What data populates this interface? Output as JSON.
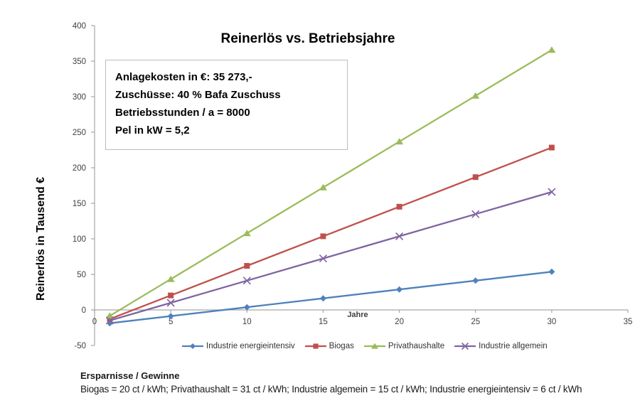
{
  "chart_data": {
    "type": "line",
    "title": "Reinerlös vs. Betriebsjahre",
    "xlabel": "Jahre",
    "ylabel": "Reinerlös in Tausend €",
    "x": [
      1,
      5,
      10,
      15,
      20,
      25,
      30
    ],
    "series": [
      {
        "name": "Industrie energieintensiv",
        "color": "#4F81BD",
        "marker": "diamond",
        "values": [
          -18.7,
          -8.7,
          3.8,
          16.3,
          28.8,
          41.2,
          53.7
        ]
      },
      {
        "name": "Biogas",
        "color": "#C0504D",
        "marker": "square",
        "values": [
          -12.8,
          20.4,
          62.0,
          103.6,
          145.2,
          186.8,
          228.4
        ]
      },
      {
        "name": "Privathaushalte",
        "color": "#9BBB59",
        "marker": "triangle",
        "values": [
          -8.3,
          43.3,
          107.8,
          172.3,
          236.8,
          301.2,
          365.7
        ]
      },
      {
        "name": "Industrie allgemein",
        "color": "#8064A2",
        "marker": "x",
        "values": [
          -14.9,
          10.0,
          41.2,
          72.4,
          103.6,
          134.8,
          166.0
        ]
      }
    ],
    "xlim": [
      0,
      35
    ],
    "ylim": [
      -50,
      400
    ],
    "x_ticks": [
      0,
      5,
      10,
      15,
      20,
      25,
      30,
      35
    ],
    "y_ticks": [
      400,
      350,
      300,
      250,
      200,
      150,
      100,
      50,
      0,
      -50
    ],
    "grid": false,
    "legend_position": "bottom",
    "axis_color": "#a6a6a6",
    "tick_label_color": "#404040",
    "annotation_lines": [
      "Anlagekosten in €: 35 273,-",
      "Zuschüsse: 40 % Bafa Zuschuss",
      "Betriebsstunden / a = 8000",
      "Pel in kW = 5,2"
    ]
  },
  "footnote": {
    "heading": "Ersparnisse / Gewinne",
    "text": "Biogas = 20 ct / kWh; Privathaushalt = 31 ct / kWh; Industrie algemein = 15 ct / kWh; Industrie energieintensiv = 6 ct / kWh"
  }
}
